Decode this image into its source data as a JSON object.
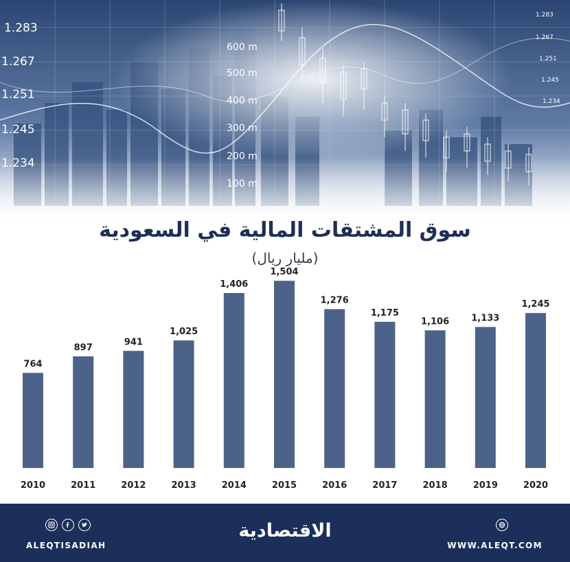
{
  "banner": {
    "left_scale": [
      "1.283",
      "1.267",
      "1.251",
      "1.245",
      "1.234"
    ],
    "height_scale": [
      "600 m",
      "500 m",
      "400 m",
      "300 m",
      "200 m",
      "100 m"
    ],
    "right_scale": [
      "1.283",
      "1.267",
      "1.251",
      "1.245",
      "1.234"
    ]
  },
  "chart_data": {
    "type": "bar",
    "title": "سوق المشتقات المالية في السعودية",
    "subtitle": "(مليار ريال)",
    "categories": [
      "2010",
      "2011",
      "2012",
      "2013",
      "2014",
      "2015",
      "2016",
      "2017",
      "2018",
      "2019",
      "2020"
    ],
    "values": [
      764,
      897,
      941,
      1025,
      1406,
      1504,
      1276,
      1175,
      1106,
      1133,
      1245
    ],
    "value_labels": [
      "764",
      "897",
      "941",
      "1,025",
      "1,406",
      "1,504",
      "1,276",
      "1,175",
      "1,106",
      "1,133",
      "1,245"
    ],
    "bar_color": "#4d6289",
    "grid": false,
    "legend": "none"
  },
  "footer": {
    "handle": "ALEQTISADIAH",
    "logo": "الاقتصادية",
    "website": "WWW.ALEQT.COM",
    "background": "#1c2f5b"
  }
}
